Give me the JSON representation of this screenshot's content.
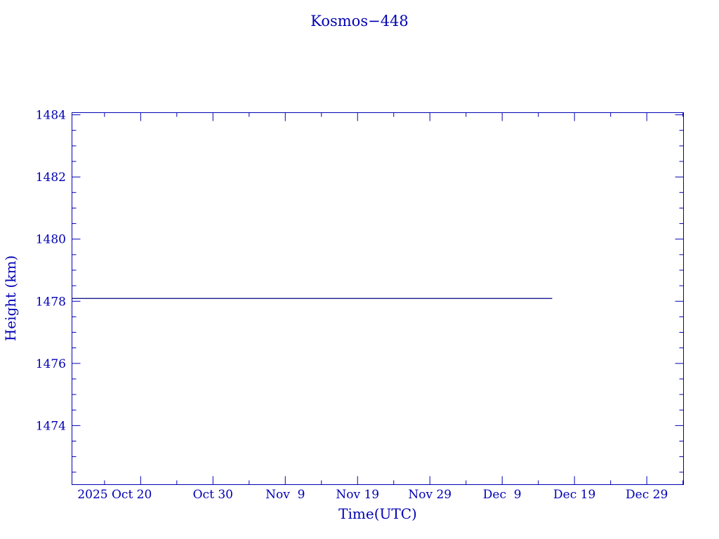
{
  "chart_data": {
    "type": "line",
    "title": "Kosmos−448",
    "xlabel": "Time(UTC)",
    "ylabel": "Height (km)",
    "xlim": [
      "2025-10-10T12:00",
      "2026-01-03T02:00"
    ],
    "ylim": [
      1472.1,
      1484.07
    ],
    "x_ticks": [
      {
        "date": "2025-10-20",
        "label": "2025 Oct 20"
      },
      {
        "date": "2025-10-30",
        "label": "Oct 30"
      },
      {
        "date": "2025-11-09",
        "label": "Nov  9"
      },
      {
        "date": "2025-11-19",
        "label": "Nov 19"
      },
      {
        "date": "2025-11-29",
        "label": "Nov 29"
      },
      {
        "date": "2025-12-09",
        "label": "Dec  9"
      },
      {
        "date": "2025-12-19",
        "label": "Dec 19"
      },
      {
        "date": "2025-12-29",
        "label": "Dec 29"
      }
    ],
    "y_ticks": [
      1474,
      1476,
      1478,
      1480,
      1482,
      1484
    ],
    "grid": false,
    "series": [
      {
        "x": [
          "2025-10-10T12:00",
          "2025-12-15T22:00"
        ],
        "values": [
          1478.09,
          1478.09
        ]
      }
    ],
    "colors": {
      "axis": "#0000b4",
      "line": "#000080",
      "text": "#0000b4"
    }
  }
}
